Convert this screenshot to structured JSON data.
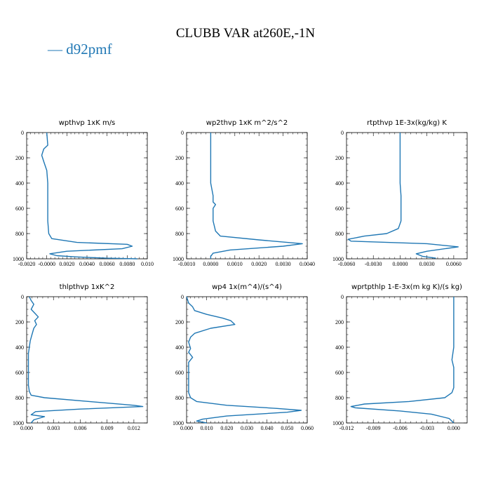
{
  "title": "CLUBB VAR at260E,-1N",
  "legend": {
    "label": "— d92pmf",
    "color": "#1f77b4"
  },
  "chart_data": [
    {
      "type": "line",
      "title": "wpthvp   1xK m/s",
      "xlim": [
        -0.002,
        0.01
      ],
      "xticks": [
        "-0.0020",
        "-0.0000",
        "0.0020",
        "0.0040",
        "0.0060",
        "0.0080",
        "0.010"
      ],
      "ylim": [
        0,
        1000
      ],
      "yinvert": true,
      "yticks": [
        "0",
        "200",
        "400",
        "600",
        "800",
        "1000"
      ],
      "series": [
        {
          "x": [
            0.0,
            0.0001,
            -0.0003,
            -0.0005,
            -0.0003,
            0.0,
            0.0001,
            0.0001,
            0.0001,
            0.0001,
            0.0002,
            0.0005,
            0.003,
            0.008,
            0.0085,
            0.0075,
            0.002,
            0.0003,
            0.001,
            0.003,
            0.006,
            0.009
          ],
          "y": [
            0,
            100,
            130,
            180,
            230,
            300,
            400,
            500,
            600,
            700,
            800,
            840,
            870,
            885,
            900,
            920,
            940,
            960,
            975,
            985,
            995,
            1000
          ]
        }
      ]
    },
    {
      "type": "line",
      "title": "wp2thvp   1xK m^2/s^2",
      "xlim": [
        -0.001,
        0.004
      ],
      "xticks": [
        "-0.0010",
        "0.0000",
        "0.0010",
        "0.0020",
        "0.0030",
        "0.0040"
      ],
      "ylim": [
        0,
        1000
      ],
      "yinvert": true,
      "yticks": [
        "0",
        "200",
        "400",
        "600",
        "800",
        "1000"
      ],
      "series": [
        {
          "x": [
            0.0,
            0.0,
            0.0,
            0.0,
            0.0001,
            0.0001,
            0.0002,
            0.0001,
            0.0001,
            0.0002,
            0.0004,
            0.002,
            0.0038,
            0.003,
            0.0008,
            0.0001,
            0.0,
            0.0
          ],
          "y": [
            0,
            200,
            300,
            400,
            500,
            550,
            570,
            600,
            700,
            780,
            820,
            850,
            880,
            900,
            930,
            955,
            980,
            1000
          ]
        }
      ]
    },
    {
      "type": "line",
      "title": "rtpthvp   1E-3x(kg/kg) K",
      "xlim": [
        -0.006,
        0.0075
      ],
      "xticks": [
        "-0.0060",
        "-0.0030",
        "0.0000",
        "0.0030",
        "0.0060"
      ],
      "ylim": [
        0,
        1000
      ],
      "yinvert": true,
      "yticks": [
        "0",
        "200",
        "400",
        "600",
        "800",
        "1000"
      ],
      "series": [
        {
          "x": [
            0.0,
            0.0,
            0.0,
            0.0001,
            0.0001,
            0.0001,
            -0.0002,
            -0.0015,
            -0.004,
            -0.0058,
            -0.0055,
            0.003,
            0.0065,
            0.003,
            0.0018,
            0.0025,
            0.004
          ],
          "y": [
            0,
            200,
            400,
            500,
            600,
            700,
            760,
            800,
            820,
            845,
            860,
            880,
            905,
            940,
            960,
            980,
            995
          ]
        }
      ]
    },
    {
      "type": "line",
      "title": "thlpthvp   1xK^2",
      "xlim": [
        0,
        0.0135
      ],
      "xticks": [
        "0.000",
        "0.003",
        "0.006",
        "0.009",
        "0.012"
      ],
      "ylim": [
        0,
        1000
      ],
      "yinvert": true,
      "yticks": [
        "0",
        "200",
        "400",
        "600",
        "800",
        "1000"
      ],
      "series": [
        {
          "x": [
            0.0003,
            0.0005,
            0.0008,
            0.0005,
            0.0009,
            0.0013,
            0.0009,
            0.0011,
            0.0008,
            0.0006,
            0.0004,
            0.0003,
            0.0002,
            0.0002,
            0.0002,
            0.0002,
            0.0003,
            0.0005,
            0.002,
            0.007,
            0.012,
            0.013,
            0.006,
            0.001,
            0.0005,
            0.002,
            0.0008,
            0.0005
          ],
          "y": [
            0,
            30,
            60,
            100,
            130,
            160,
            190,
            220,
            250,
            300,
            350,
            400,
            450,
            500,
            600,
            700,
            750,
            780,
            800,
            830,
            860,
            870,
            890,
            910,
            935,
            950,
            975,
            1000
          ]
        }
      ]
    },
    {
      "type": "line",
      "title": "wp4   1x(m^4)/(s^4)",
      "xlim": [
        0,
        0.06
      ],
      "xticks": [
        "0.000",
        "0.010",
        "0.020",
        "0.030",
        "0.040",
        "0.050",
        "0.060"
      ],
      "ylim": [
        0,
        1000
      ],
      "yinvert": true,
      "yticks": [
        "0",
        "200",
        "400",
        "600",
        "800",
        "1000"
      ],
      "series": [
        {
          "x": [
            0.0,
            0.001,
            0.003,
            0.004,
            0.01,
            0.018,
            0.022,
            0.024,
            0.012,
            0.004,
            0.002,
            0.001,
            0.002,
            0.001,
            0.003,
            0.001,
            0.001,
            0.001,
            0.001,
            0.002,
            0.005,
            0.02,
            0.045,
            0.057,
            0.05,
            0.02,
            0.008,
            0.005,
            0.01
          ],
          "y": [
            0,
            50,
            80,
            110,
            140,
            170,
            190,
            220,
            250,
            290,
            320,
            360,
            410,
            440,
            480,
            520,
            600,
            700,
            760,
            800,
            830,
            860,
            885,
            900,
            915,
            945,
            970,
            985,
            1000
          ]
        }
      ]
    },
    {
      "type": "line",
      "title": "wprtpthlp   1-E-3x(m kg K)/(s kg)",
      "xlim": [
        -0.012,
        0.0015
      ],
      "xticks": [
        "-0.012",
        "-0.009",
        "-0.006",
        "-0.003",
        "0.000"
      ],
      "ylim": [
        0,
        1000
      ],
      "yinvert": true,
      "yticks": [
        "0",
        "200",
        "400",
        "600",
        "800",
        "1000"
      ],
      "series": [
        {
          "x": [
            0.0,
            0.0,
            0.0,
            -0.0001,
            -0.0002,
            0.0,
            0.0,
            0.0,
            -0.0002,
            -0.001,
            -0.005,
            -0.01,
            -0.0115,
            -0.011,
            -0.006,
            -0.0025,
            -0.0005,
            0.0
          ],
          "y": [
            0,
            200,
            400,
            450,
            500,
            560,
            650,
            720,
            760,
            800,
            830,
            850,
            870,
            880,
            905,
            930,
            965,
            1000
          ]
        }
      ]
    }
  ]
}
